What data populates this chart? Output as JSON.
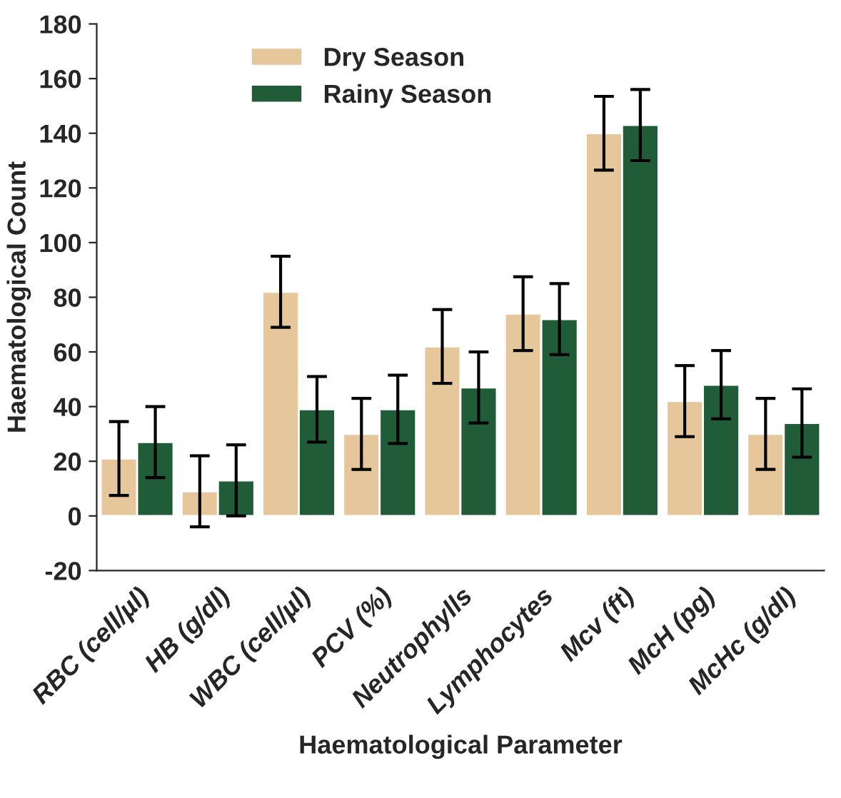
{
  "chart_data": {
    "type": "bar",
    "xlabel": "Haematological Parameter",
    "ylabel": "Haematological Count",
    "categories": [
      "RBC (cell/µl)",
      "HB (g/dl)",
      "WBC (cell/µl)",
      "PCV (%)",
      "Neutrophylls",
      "Lymphocytes",
      "Mcv (ft)",
      "McH (pg)",
      "McHc (g/dl)"
    ],
    "series": [
      {
        "name": "Dry Season",
        "color": "#e6c79c",
        "values": [
          21,
          9,
          82,
          30,
          62,
          74,
          140,
          42,
          30
        ],
        "errors": [
          13.5,
          13,
          13,
          13,
          13.5,
          13.5,
          13.5,
          13,
          13
        ]
      },
      {
        "name": "Rainy Season",
        "color": "#1f5c37",
        "values": [
          27,
          13,
          39,
          39,
          47,
          72,
          143,
          48,
          34
        ],
        "errors": [
          13,
          13,
          12,
          12.5,
          13,
          13,
          13,
          12.5,
          12.5
        ]
      }
    ],
    "ylim": [
      -20,
      180
    ],
    "yticks": [
      -20,
      0,
      20,
      40,
      60,
      80,
      100,
      120,
      140,
      160,
      180
    ],
    "grid": false,
    "legend": "top left"
  }
}
